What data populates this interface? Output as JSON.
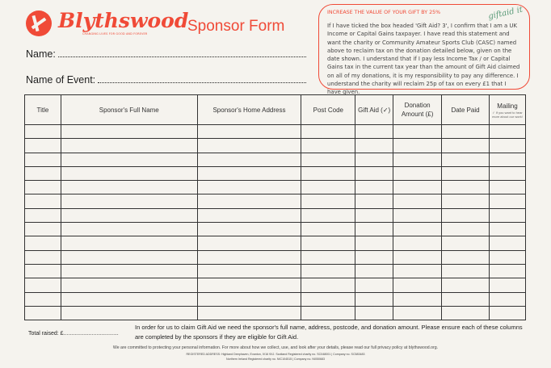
{
  "brand": {
    "name": "Blythswood",
    "tagline": "CHANGING LIVES FOR GOOD AND FOREVER",
    "color": "#f04a37"
  },
  "title": "Sponsor Form",
  "fields": {
    "name": "Name:",
    "event": "Name of Event:"
  },
  "gift_aid": {
    "heading": "INCREASE THE VALUE OF YOUR GIFT BY 25%",
    "logo": "giftaid it",
    "text": "If I have ticked the box headed 'Gift Aid? 3', I confirm that I am a UK Income or Capital Gains taxpayer. I have read this statement and want the charity or Community Amateur Sports Club (CASC) named above to reclaim tax on the donation detailed below, given on the date shown. I understand that if I pay less Income Tax / or Capital Gains tax in the current tax year than the amount of Gift Aid claimed on all of my donations, it is my responsibility to pay any difference. I understand the charity will reclaim 25p of tax on every £1 that I have given."
  },
  "table": {
    "headers": [
      "Title",
      "Sponsor's Full Name",
      "Sponsor's Home Address",
      "Post Code",
      "Gift Aid (✓)",
      "Donation Amount (£)",
      "Date Paid",
      "Mailing"
    ],
    "mailing_note": "✓ If you want to hear more about our work!"
  },
  "total": "Total raised: £...................................",
  "note": "In order for us to claim Gift Aid we need the sponsor's full name, address, postcode, and donation amount.  Please  ensure each  of these columns are completed by the sponsors if they are eligible for Gift Aid.",
  "footer": {
    "privacy": "We are committed to protecting your personal information.  For more about how we collect, use, and look after your details, please read our full privacy policy at blythswood.org.",
    "address": "REGISTERED ADDRESS: Highland Deephaven, Evanton, IV16 9XJ.  Scotland Registered charity no. SC048001 | Company no. SC583483",
    "ni": "Northern Ireland Registered charity no. NIC104515 | Company no. NI050683"
  }
}
